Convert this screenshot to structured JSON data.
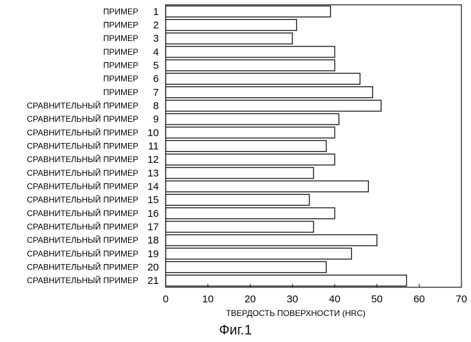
{
  "figure_caption": "Фиг.1",
  "chart_data": {
    "type": "bar",
    "orientation": "horizontal",
    "categories": [
      {
        "label": "ПРИМЕР",
        "number": "1"
      },
      {
        "label": "ПРИМЕР",
        "number": "2"
      },
      {
        "label": "ПРИМЕР",
        "number": "3"
      },
      {
        "label": "ПРИМЕР",
        "number": "4"
      },
      {
        "label": "ПРИМЕР",
        "number": "5"
      },
      {
        "label": "ПРИМЕР",
        "number": "6"
      },
      {
        "label": "ПРИМЕР",
        "number": "7"
      },
      {
        "label": "СРАВНИТЕЛЬНЫЙ ПРИМЕР",
        "number": "8"
      },
      {
        "label": "СРАВНИТЕЛЬНЫЙ ПРИМЕР",
        "number": "9"
      },
      {
        "label": "СРАВНИТЕЛЬНЫЙ ПРИМЕР",
        "number": "10"
      },
      {
        "label": "СРАВНИТЕЛЬНЫЙ ПРИМЕР",
        "number": "11"
      },
      {
        "label": "СРАВНИТЕЛЬНЫЙ ПРИМЕР",
        "number": "12"
      },
      {
        "label": "СРАВНИТЕЛЬНЫЙ ПРИМЕР",
        "number": "13"
      },
      {
        "label": "СРАВНИТЕЛЬНЫЙ ПРИМЕР",
        "number": "14"
      },
      {
        "label": "СРАВНИТЕЛЬНЫЙ ПРИМЕР",
        "number": "15"
      },
      {
        "label": "СРАВНИТЕЛЬНЫЙ ПРИМЕР",
        "number": "16"
      },
      {
        "label": "СРАВНИТЕЛЬНЫЙ ПРИМЕР",
        "number": "17"
      },
      {
        "label": "СРАВНИТЕЛЬНЫЙ ПРИМЕР",
        "number": "18"
      },
      {
        "label": "СРАВНИТЕЛЬНЫЙ ПРИМЕР",
        "number": "19"
      },
      {
        "label": "СРАВНИТЕЛЬНЫЙ ПРИМЕР",
        "number": "20"
      },
      {
        "label": "СРАВНИТЕЛЬНЫЙ ПРИМЕР",
        "number": "21"
      }
    ],
    "values": [
      39,
      31,
      30,
      40,
      40,
      46,
      49,
      51,
      41,
      40,
      38,
      40,
      35,
      48,
      34,
      40,
      35,
      50,
      44,
      38,
      57
    ],
    "xlabel": "ТВЕРДОСТЬ ПОВЕРХНОСТИ (HRC)",
    "ylabel": "",
    "xlim": [
      0,
      70
    ],
    "xticks": [
      0,
      10,
      20,
      30,
      40,
      50,
      60,
      70
    ],
    "grid": false,
    "legend": "none",
    "bar_fill": "#ffffff",
    "bar_stroke": "#111111"
  }
}
